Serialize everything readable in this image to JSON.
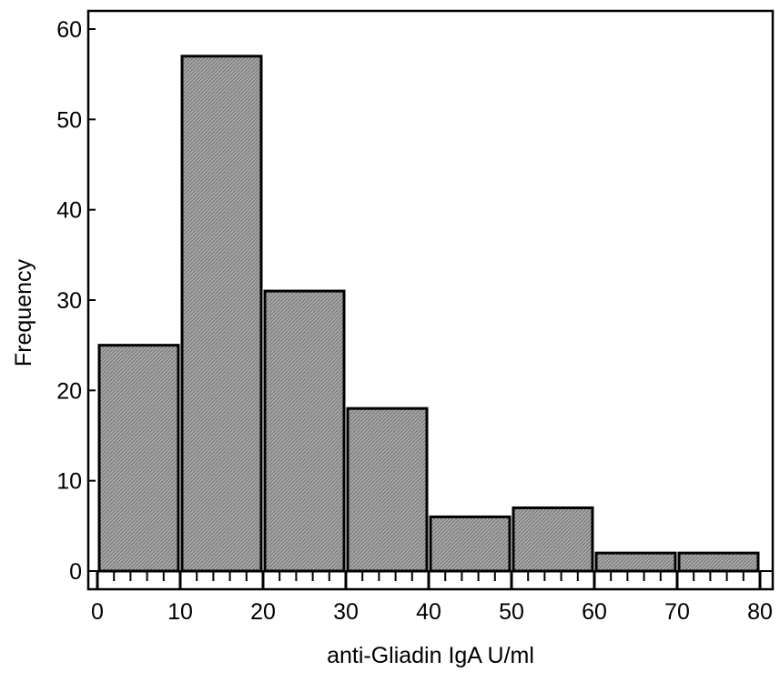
{
  "chart_data": {
    "type": "bar",
    "title": "",
    "xlabel": "anti-Gliadin IgA U/ml",
    "ylabel": "Frequency",
    "bins": [
      {
        "start": 0,
        "end": 10,
        "value": 25
      },
      {
        "start": 10,
        "end": 20,
        "value": 57
      },
      {
        "start": 20,
        "end": 30,
        "value": 31
      },
      {
        "start": 30,
        "end": 40,
        "value": 18
      },
      {
        "start": 40,
        "end": 50,
        "value": 6
      },
      {
        "start": 50,
        "end": 60,
        "value": 7
      },
      {
        "start": 60,
        "end": 70,
        "value": 2
      },
      {
        "start": 70,
        "end": 80,
        "value": 2
      }
    ],
    "xlim": [
      0,
      80
    ],
    "ylim": [
      0,
      60
    ],
    "x_ticks": [
      0,
      10,
      20,
      30,
      40,
      50,
      60,
      70,
      80
    ],
    "y_ticks": [
      0,
      10,
      20,
      30,
      40,
      50,
      60
    ],
    "x_minor_step": 2,
    "grid": false,
    "legend": "none",
    "colors": {
      "bar_fill": "#9b9b9b",
      "bar_stroke": "#000000",
      "axis": "#000000",
      "background": "#ffffff"
    }
  }
}
